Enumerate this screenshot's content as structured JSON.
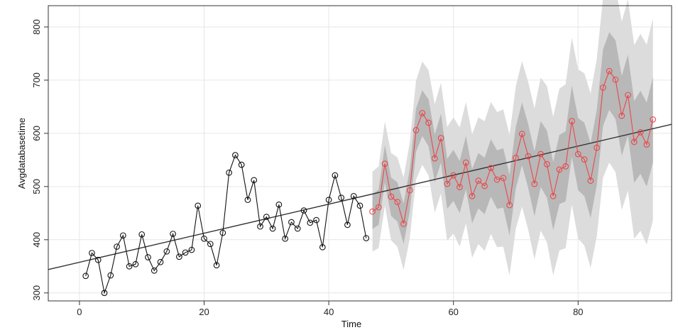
{
  "chart_data": {
    "type": "line",
    "title": "",
    "xlabel": "Time",
    "ylabel": "Avgdatabasetime",
    "xlim": [
      -5,
      95
    ],
    "ylim": [
      285,
      840
    ],
    "x_ticks": [
      0,
      20,
      40,
      60,
      80
    ],
    "y_ticks": [
      300,
      400,
      500,
      600,
      700,
      800
    ],
    "grid": true,
    "legend": "none",
    "colors": {
      "observed": "#111111",
      "forecast": "#e8474a",
      "trend": "#333333",
      "band_outer": "#dcdcdc",
      "band_inner": "#b8b8b8",
      "grid": "#e6e6e6"
    },
    "series": [
      {
        "role": "observed",
        "x": [
          1,
          2,
          3,
          4,
          5,
          6,
          7,
          8,
          9,
          10,
          11,
          12,
          13,
          14,
          15,
          16,
          17,
          18,
          19,
          20,
          21,
          22,
          23,
          24,
          25,
          26,
          27,
          28,
          29,
          30,
          31,
          32,
          33,
          34,
          35,
          36,
          37,
          38,
          39,
          40,
          41,
          42,
          43,
          44,
          45,
          46
        ],
        "y": [
          332,
          375,
          362,
          300,
          333,
          387,
          408,
          350,
          354,
          410,
          367,
          342,
          358,
          378,
          411,
          368,
          376,
          381,
          464,
          402,
          392,
          352,
          413,
          526,
          559,
          541,
          475,
          512,
          425,
          443,
          421,
          466,
          402,
          433,
          421,
          455,
          432,
          437,
          386,
          475,
          521,
          479,
          428,
          482,
          464,
          403
        ]
      },
      {
        "role": "forecast",
        "x": [
          47,
          48,
          49,
          50,
          51,
          52,
          53,
          54,
          55,
          56,
          57,
          58,
          59,
          60,
          61,
          62,
          63,
          64,
          65,
          66,
          67,
          68,
          69,
          70,
          71,
          72,
          73,
          74,
          75,
          76,
          77,
          78,
          79,
          80,
          81,
          82,
          83,
          84,
          85,
          86,
          87,
          88,
          89,
          90,
          91,
          92
        ],
        "y": [
          453,
          461,
          543,
          481,
          471,
          430,
          493,
          606,
          638,
          620,
          553,
          591,
          505,
          521,
          499,
          545,
          482,
          511,
          501,
          535,
          513,
          516,
          465,
          554,
          599,
          557,
          505,
          561,
          542,
          482,
          532,
          538,
          623,
          561,
          551,
          511,
          573,
          686,
          717,
          701,
          633,
          672,
          584,
          602,
          579,
          626
        ]
      }
    ],
    "band_inner": {
      "x": [
        47,
        48,
        49,
        50,
        51,
        52,
        53,
        54,
        55,
        56,
        57,
        58,
        59,
        60,
        61,
        62,
        63,
        64,
        65,
        66,
        67,
        68,
        69,
        70,
        71,
        72,
        73,
        74,
        75,
        76,
        77,
        78,
        79,
        80,
        81,
        82,
        83,
        84,
        85,
        86,
        87,
        88,
        89,
        90,
        91,
        92
      ],
      "lower": [
        420,
        428,
        508,
        445,
        434,
        392,
        453,
        565,
        595,
        576,
        508,
        545,
        458,
        473,
        450,
        495,
        431,
        459,
        448,
        481,
        458,
        460,
        408,
        496,
        540,
        497,
        444,
        499,
        479,
        418,
        467,
        472,
        556,
        493,
        482,
        441,
        502,
        614,
        644,
        627,
        558,
        596,
        507,
        524,
        500,
        546
      ],
      "upper": [
        486,
        494,
        578,
        517,
        508,
        468,
        533,
        647,
        681,
        664,
        598,
        637,
        552,
        569,
        548,
        595,
        533,
        563,
        554,
        589,
        568,
        572,
        522,
        612,
        658,
        617,
        566,
        623,
        605,
        546,
        597,
        604,
        690,
        629,
        620,
        581,
        644,
        758,
        790,
        775,
        708,
        748,
        661,
        680,
        658,
        706
      ]
    },
    "band_outer": {
      "x": [
        47,
        48,
        49,
        50,
        51,
        52,
        53,
        54,
        55,
        56,
        57,
        58,
        59,
        60,
        61,
        62,
        63,
        64,
        65,
        66,
        67,
        68,
        69,
        70,
        71,
        72,
        73,
        74,
        75,
        76,
        77,
        78,
        79,
        80,
        81,
        82,
        83,
        84,
        85,
        86,
        87,
        88,
        89,
        90,
        91,
        92
      ],
      "lower": [
        378,
        384,
        464,
        399,
        387,
        343,
        403,
        513,
        541,
        521,
        451,
        487,
        398,
        412,
        387,
        431,
        366,
        392,
        379,
        411,
        386,
        387,
        333,
        420,
        462,
        418,
        363,
        417,
        395,
        333,
        380,
        384,
        466,
        402,
        389,
        347,
        406,
        517,
        545,
        527,
        456,
        492,
        402,
        417,
        391,
        436
      ],
      "upper": [
        528,
        538,
        622,
        563,
        555,
        517,
        583,
        699,
        735,
        719,
        655,
        695,
        612,
        630,
        611,
        659,
        598,
        630,
        623,
        659,
        640,
        645,
        597,
        688,
        736,
        696,
        647,
        705,
        689,
        631,
        684,
        692,
        780,
        720,
        713,
        675,
        740,
        855,
        889,
        875,
        810,
        852,
        766,
        787,
        767,
        816
      ]
    },
    "trend_line": {
      "x": [
        -5,
        95
      ],
      "y": [
        344,
        617
      ]
    }
  }
}
